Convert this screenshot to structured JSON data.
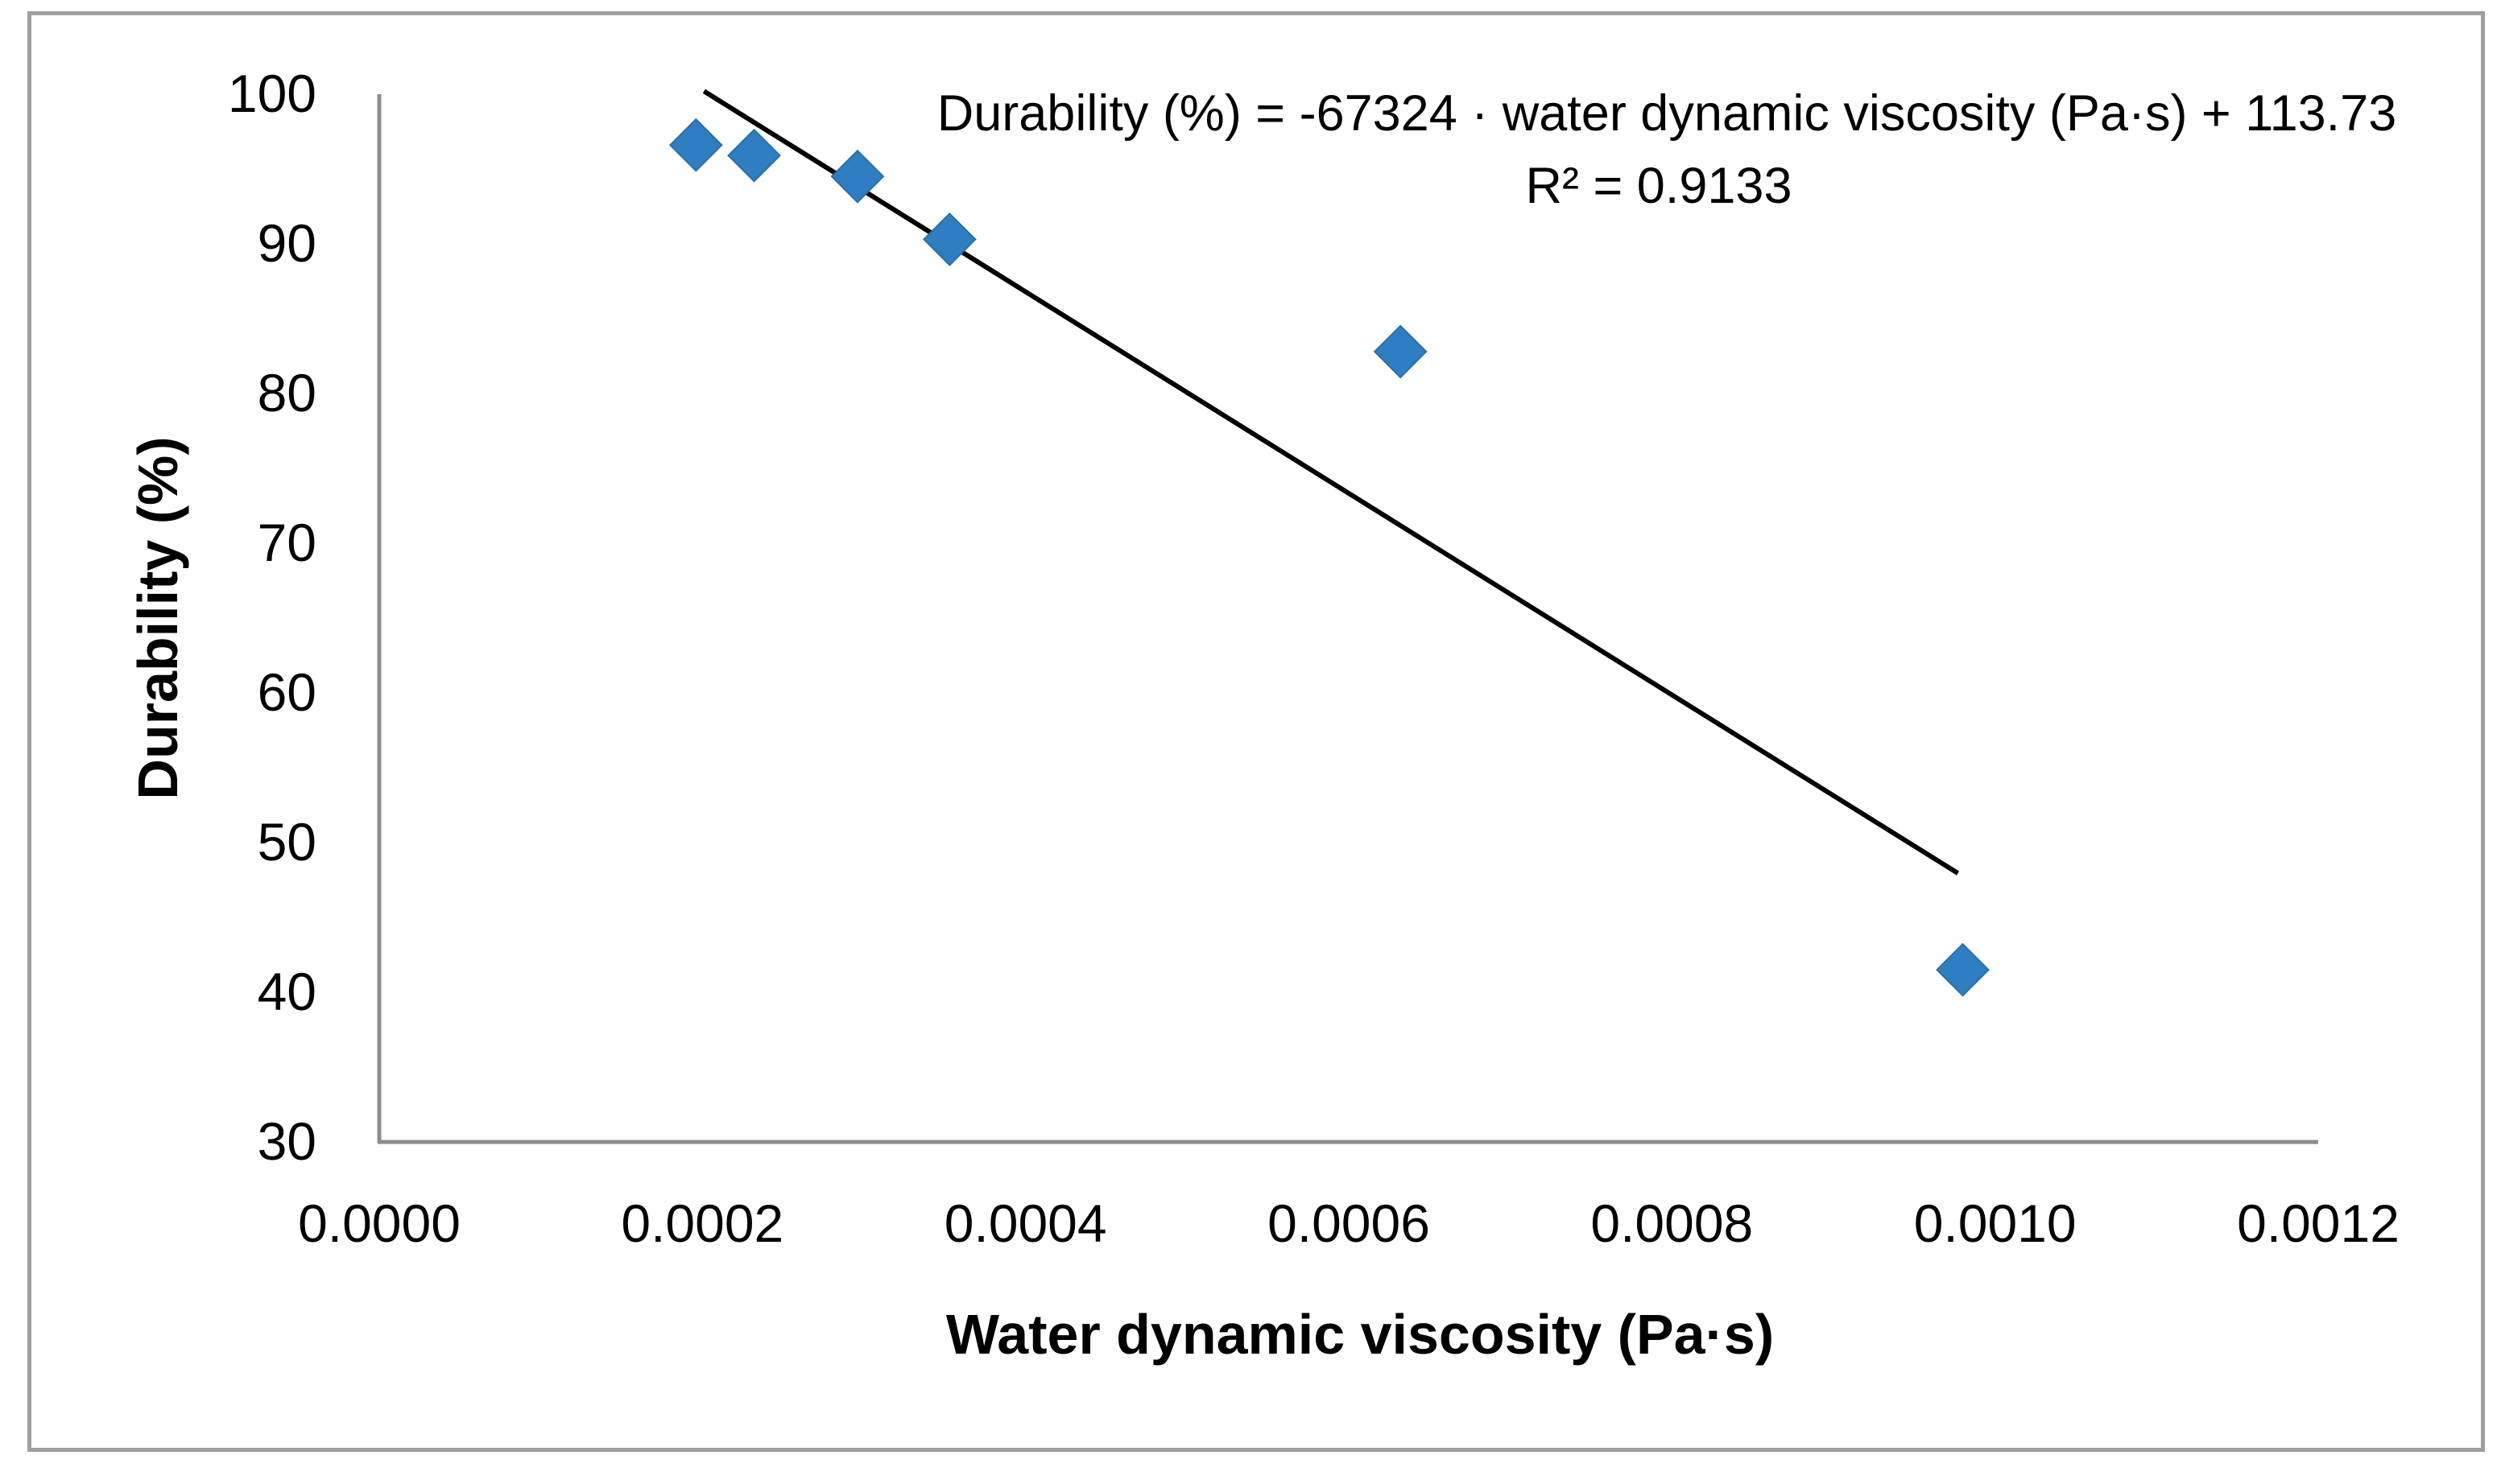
{
  "chart_data": {
    "type": "scatter",
    "title": "",
    "xlabel": "Water dynamic viscosity (Pa·s)",
    "ylabel": "Durability (%)",
    "xlim": [
      0.0,
      0.0012
    ],
    "ylim": [
      30,
      100
    ],
    "x_ticks": [
      "0.0000",
      "0.0002",
      "0.0004",
      "0.0006",
      "0.0008",
      "0.0010",
      "0.0012"
    ],
    "x_tick_values": [
      0.0,
      0.0002,
      0.0004,
      0.0006,
      0.0008,
      0.001,
      0.0012
    ],
    "y_ticks": [
      "30",
      "40",
      "50",
      "60",
      "70",
      "80",
      "90",
      "100"
    ],
    "y_tick_values": [
      30,
      40,
      50,
      60,
      70,
      80,
      90,
      100
    ],
    "grid": false,
    "series": [
      {
        "name": "Durability",
        "marker": "diamond",
        "color": "#2E7EC1",
        "x": [
          0.000196,
          0.000232,
          0.000296,
          0.000353,
          0.000632,
          0.00098
        ],
        "y": [
          96.6,
          95.9,
          94.5,
          90.3,
          82.8,
          41.5
        ]
      }
    ],
    "trendline": {
      "type": "linear",
      "slope": -67324,
      "intercept": 113.73,
      "x_range": [
        0.000201,
        0.000977
      ],
      "color": "#000000",
      "equation_label": "Durability (%) = -67324 · water dynamic viscosity (Pa·s) + 113.73",
      "r2_label": "R² = 0.9133"
    }
  }
}
